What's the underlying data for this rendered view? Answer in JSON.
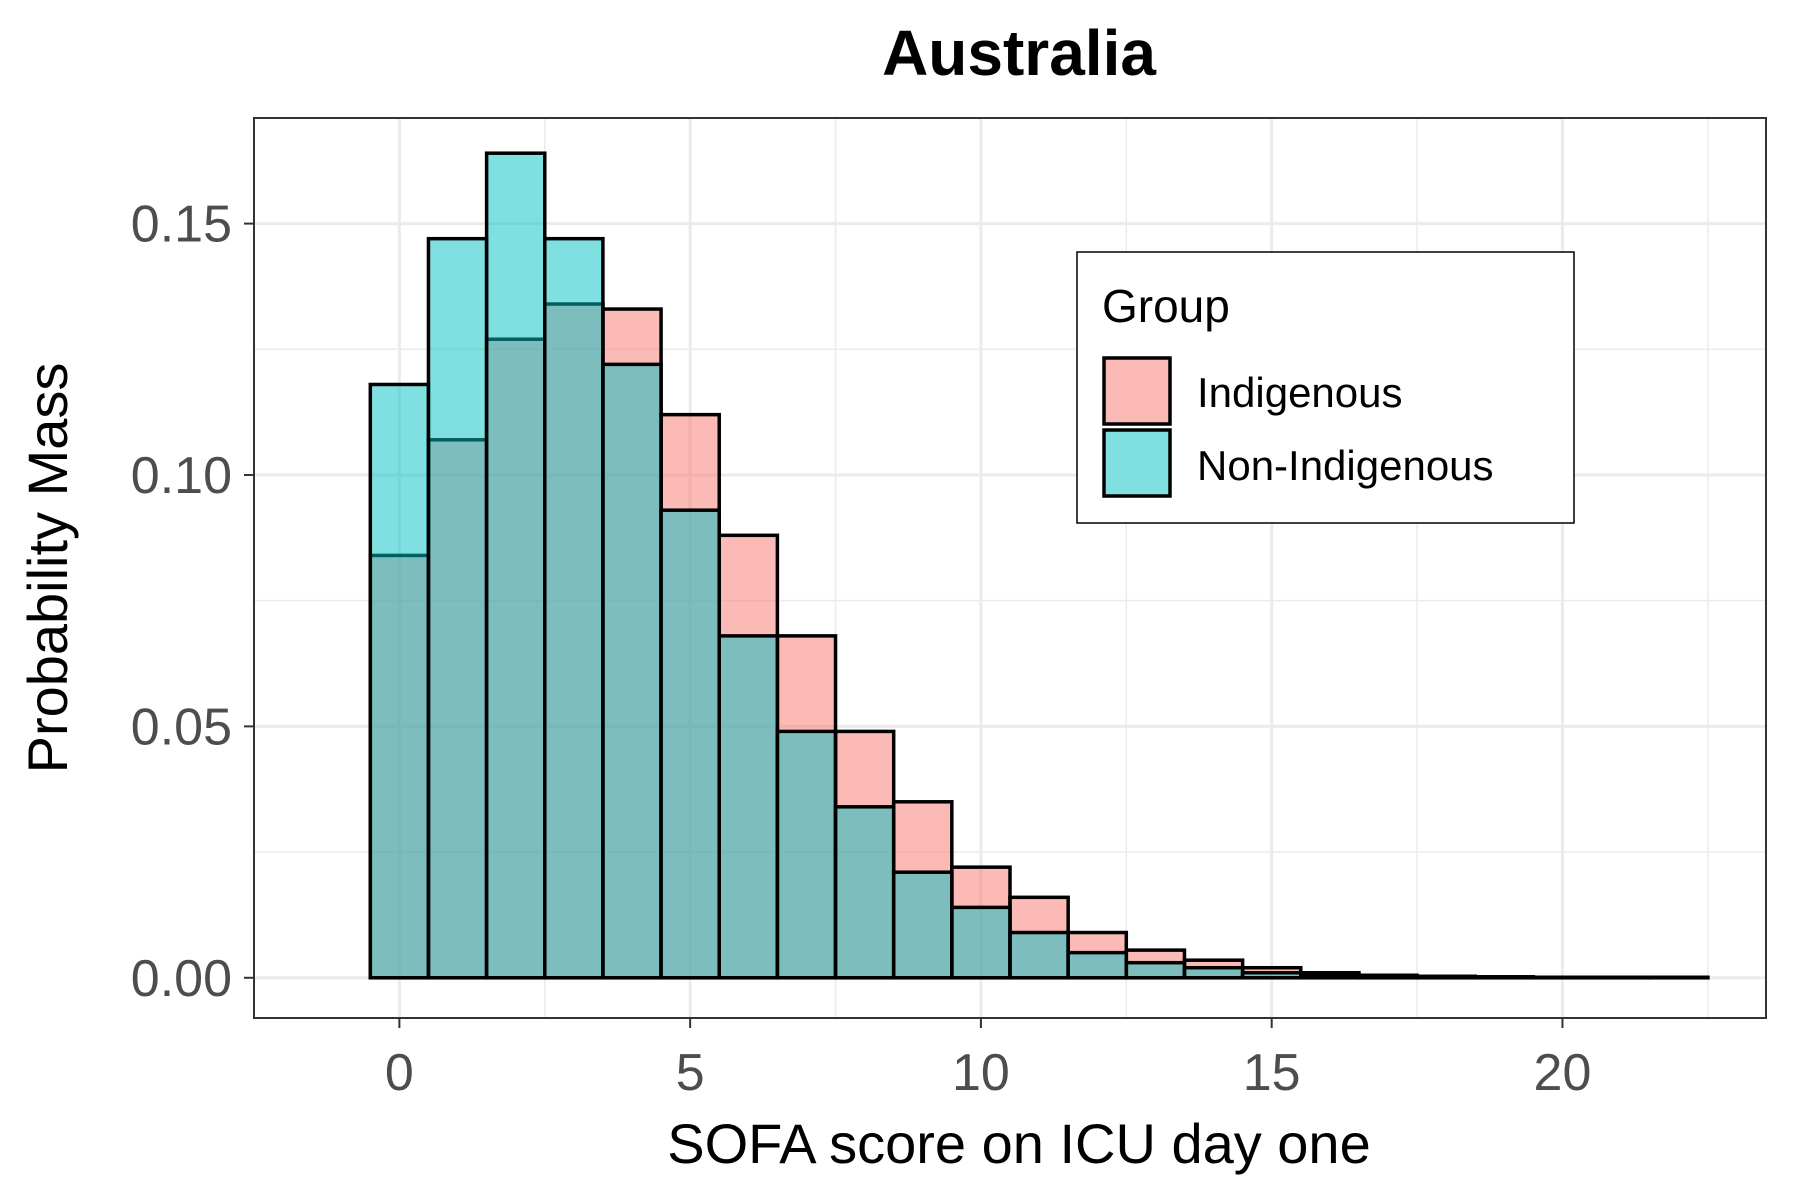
{
  "chart_data": {
    "type": "bar",
    "title": "Australia",
    "xlabel": "SOFA score on ICU day one",
    "ylabel": "Probability Mass",
    "xlim": [
      -2.5,
      23.5
    ],
    "ylim": [
      -0.008,
      0.171
    ],
    "x_ticks": [
      0,
      5,
      10,
      15,
      20
    ],
    "x_tick_labels": [
      "0",
      "5",
      "10",
      "15",
      "20"
    ],
    "y_ticks": [
      0.0,
      0.05,
      0.1,
      0.15
    ],
    "y_tick_labels": [
      "0.00",
      "0.05",
      "0.10",
      "0.15"
    ],
    "grid": true,
    "legend_position": "top-right",
    "legend_title": "Group",
    "categories": [
      0,
      1,
      2,
      3,
      4,
      5,
      6,
      7,
      8,
      9,
      10,
      11,
      12,
      13,
      14,
      15,
      16,
      17,
      18,
      19,
      20,
      21,
      22
    ],
    "series": [
      {
        "name": "Indigenous",
        "color": "#F8766D",
        "values": [
          0.084,
          0.107,
          0.127,
          0.134,
          0.133,
          0.112,
          0.088,
          0.068,
          0.049,
          0.035,
          0.022,
          0.016,
          0.009,
          0.0055,
          0.0035,
          0.002,
          0.001,
          0.0005,
          0.0003,
          0.0002,
          0.0001,
          0.0001,
          0.0001
        ]
      },
      {
        "name": "Non-Indigenous",
        "color": "#00BFC4",
        "values": [
          0.118,
          0.147,
          0.164,
          0.147,
          0.122,
          0.093,
          0.068,
          0.049,
          0.034,
          0.021,
          0.014,
          0.009,
          0.005,
          0.003,
          0.002,
          0.001,
          0.0006,
          0.0003,
          0.0002,
          0.0001,
          0.0001,
          0.0001,
          0.0001
        ]
      }
    ]
  }
}
